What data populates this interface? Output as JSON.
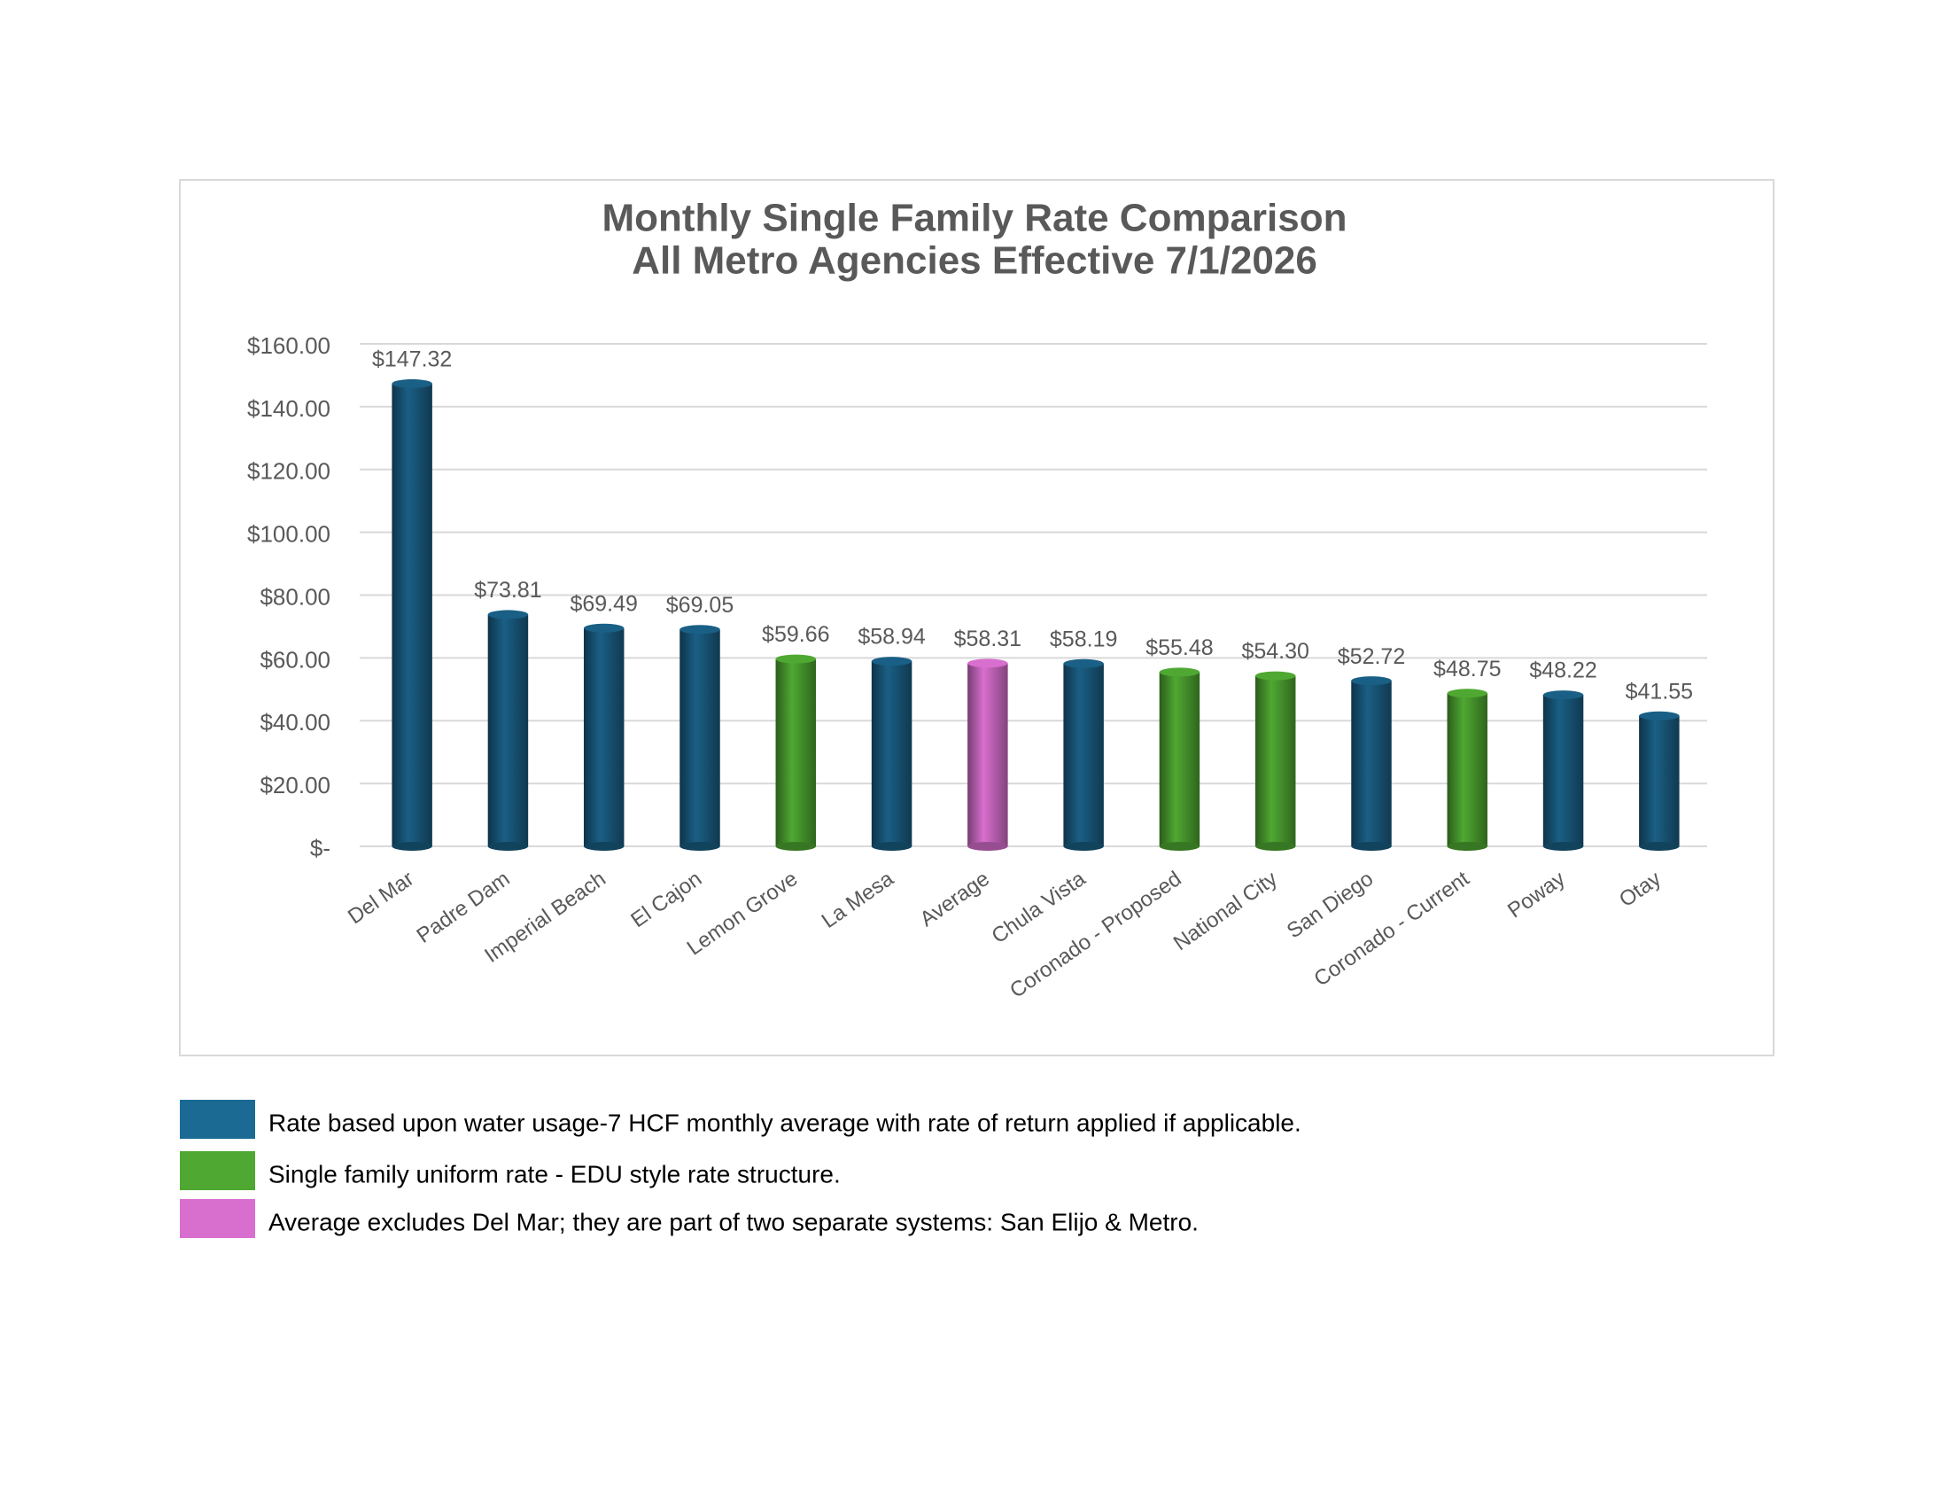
{
  "chart_data": {
    "type": "bar",
    "title": [
      "Monthly Single Family Rate Comparison",
      "All Metro Agencies Effective 7/1/2026"
    ],
    "categories": [
      "Del Mar",
      "Padre Dam",
      "Imperial Beach",
      "El Cajon",
      "Lemon Grove",
      "La Mesa",
      "Average",
      "Chula Vista",
      "Coronado - Proposed",
      "National City",
      "San Diego",
      "Coronado - Current",
      "Poway",
      "Otay"
    ],
    "values": [
      147.32,
      73.81,
      69.49,
      69.05,
      59.66,
      58.94,
      58.31,
      58.19,
      55.48,
      54.3,
      52.72,
      48.75,
      48.22,
      41.55
    ],
    "value_labels": [
      "$147.32",
      "$73.81",
      "$69.49",
      "$69.05",
      "$59.66",
      "$58.94",
      "$58.31",
      "$58.19",
      "$55.48",
      "$54.30",
      "$52.72",
      "$48.75",
      "$48.22",
      "$41.55"
    ],
    "colors": [
      "#1a5f85",
      "#1a5f85",
      "#1a5f85",
      "#1a5f85",
      "#4fa832",
      "#1a5f85",
      "#d86fcf",
      "#1a5f85",
      "#4fa832",
      "#4fa832",
      "#1a5f85",
      "#4fa832",
      "#1a5f85",
      "#1a5f85"
    ],
    "ylim": [
      0,
      160
    ],
    "yticks": [
      {
        "value": 0,
        "label": "$-"
      },
      {
        "value": 20,
        "label": "$20.00"
      },
      {
        "value": 40,
        "label": "$40.00"
      },
      {
        "value": 60,
        "label": "$60.00"
      },
      {
        "value": 80,
        "label": "$80.00"
      },
      {
        "value": 100,
        "label": "$100.00"
      },
      {
        "value": 120,
        "label": "$120.00"
      },
      {
        "value": 140,
        "label": "$140.00"
      },
      {
        "value": 160,
        "label": "$160.00"
      }
    ],
    "grid": true,
    "legend": [
      {
        "color": "#1a6a93",
        "label": "Rate based upon water usage-7 HCF monthly average with rate of return applied if applicable."
      },
      {
        "color": "#4fa832",
        "label": "Single family uniform rate - EDU style rate structure."
      },
      {
        "color": "#d86fcf",
        "label": "Average excludes Del Mar; they are part of two separate systems: San Elijo & Metro."
      }
    ]
  }
}
